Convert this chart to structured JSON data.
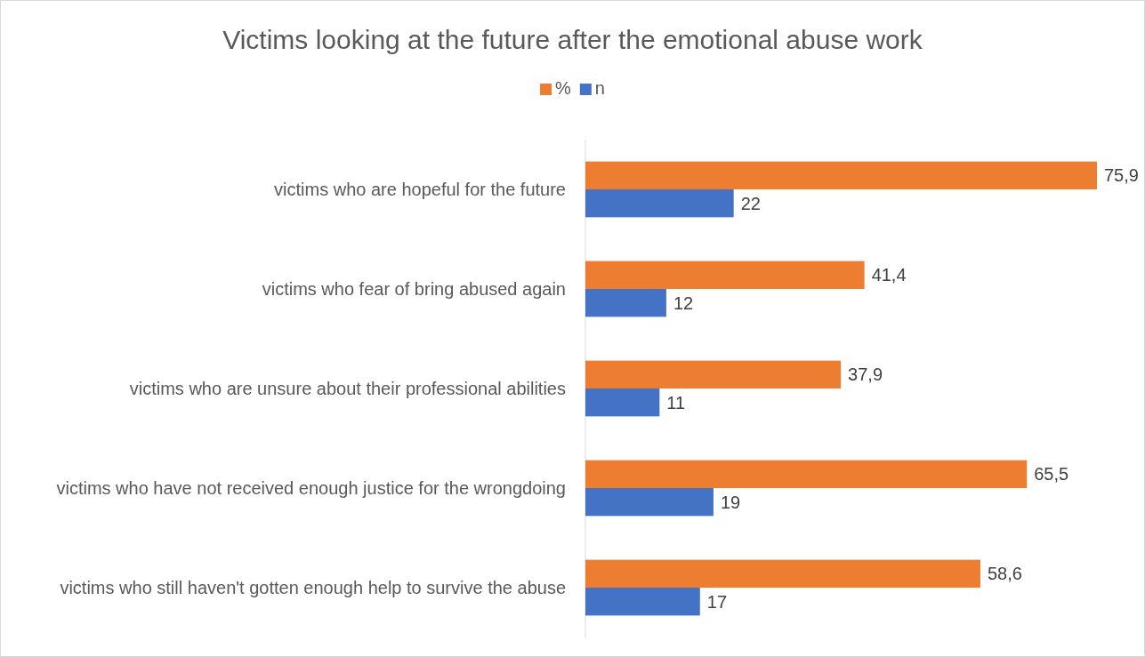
{
  "chart_data": {
    "type": "bar",
    "orientation": "horizontal",
    "title": "Victims looking at the future after the emotional abuse work",
    "categories": [
      "victims who are hopeful for the future",
      "victims who fear of bring abused again",
      "victims who are unsure about their professional abilities ",
      "victims who have not received enough justice for the wrongdoing",
      "victims who still haven't gotten enough help to survive the abuse"
    ],
    "series": [
      {
        "name": "%",
        "color": "#ed7d31",
        "values": [
          75.9,
          41.4,
          37.9,
          65.5,
          58.6
        ],
        "value_labels": [
          "75,9",
          "41,4",
          "37,9",
          "65,5",
          "58,6"
        ]
      },
      {
        "name": "n",
        "color": "#4472c4",
        "values": [
          22,
          12,
          11,
          19,
          17
        ],
        "value_labels": [
          "22",
          "12",
          "11",
          "19",
          "17"
        ]
      }
    ],
    "grid": false,
    "legend": "top"
  }
}
